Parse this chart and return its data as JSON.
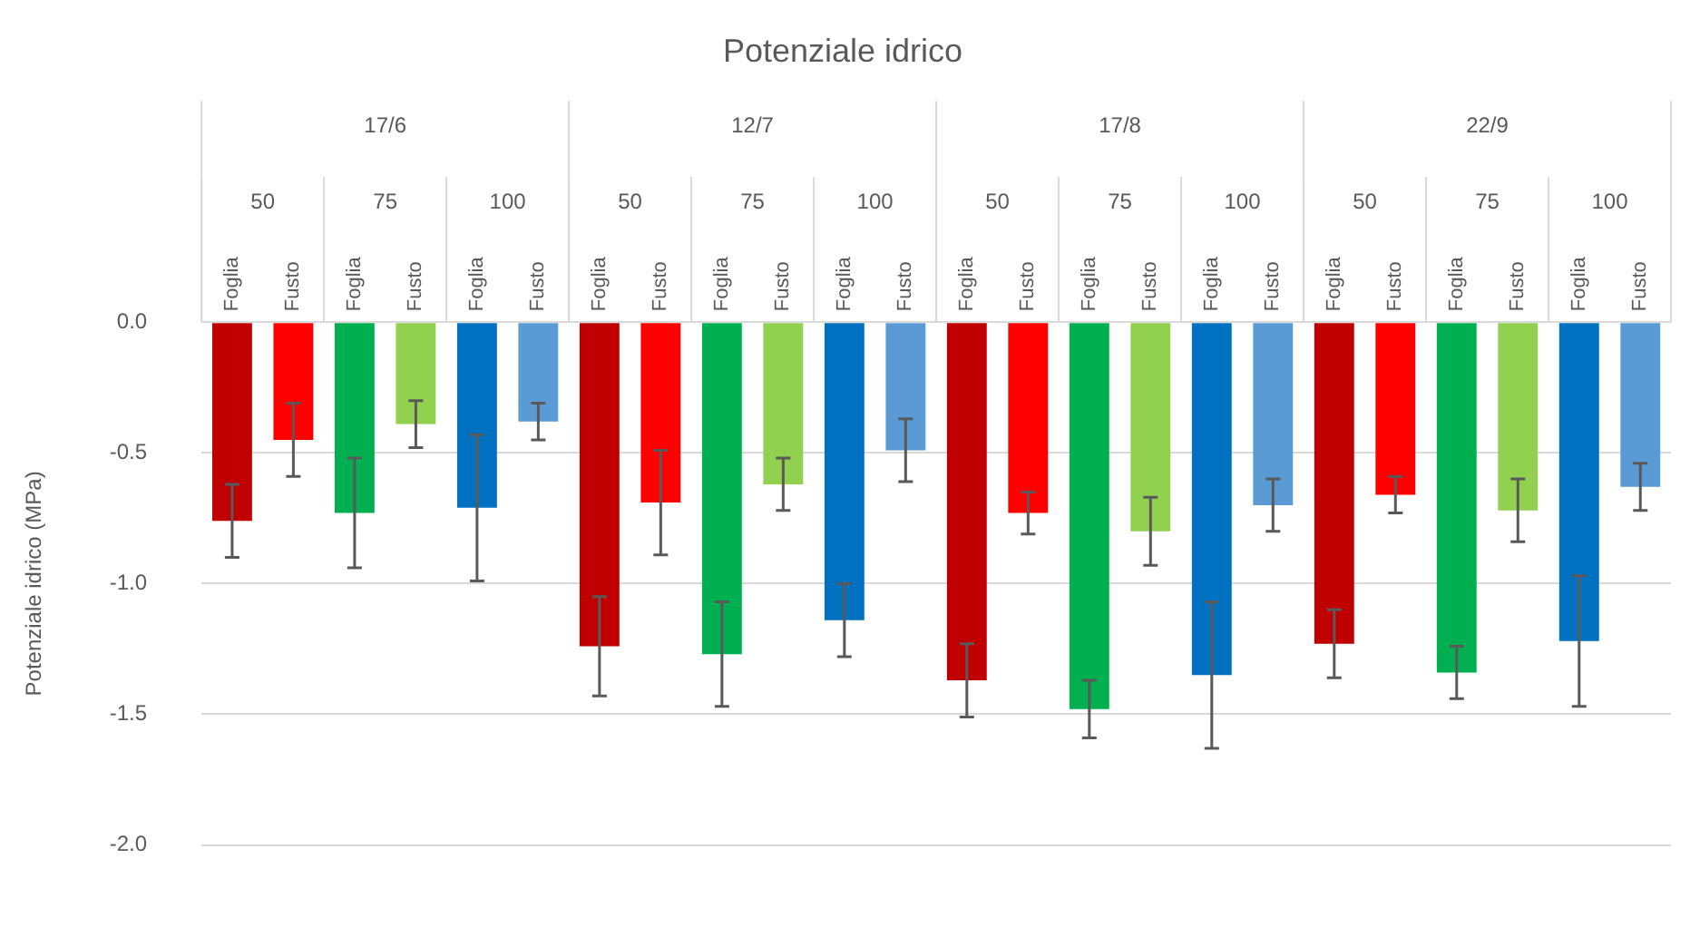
{
  "chart_data": {
    "type": "bar",
    "title": "Potenziale idrico",
    "ylabel": "Potenziale idrico (MPa)",
    "categories": [
      "Foglia",
      "Fusto",
      "Foglia",
      "Fusto",
      "Foglia",
      "Fusto",
      "Foglia",
      "Fusto",
      "Foglia",
      "Fusto",
      "Foglia",
      "Fusto",
      "Foglia",
      "Fusto",
      "Foglia",
      "Fusto",
      "Foglia",
      "Fusto",
      "Foglia",
      "Fusto",
      "Foglia",
      "Fusto",
      "Foglia",
      "Fusto"
    ],
    "values": [
      -0.76,
      -0.45,
      -0.73,
      -0.39,
      -0.71,
      -0.38,
      -1.24,
      -0.69,
      -1.27,
      -0.62,
      -1.14,
      -0.49,
      -1.37,
      -0.73,
      -1.48,
      -0.8,
      -1.35,
      -0.7,
      -1.23,
      -0.66,
      -1.34,
      -0.72,
      -1.22,
      -0.63
    ],
    "errors": [
      0.14,
      0.14,
      0.21,
      0.09,
      0.28,
      0.07,
      0.19,
      0.2,
      0.2,
      0.1,
      0.14,
      0.12,
      0.14,
      0.08,
      0.11,
      0.13,
      0.28,
      0.1,
      0.13,
      0.07,
      0.1,
      0.12,
      0.25,
      0.09
    ],
    "colors": [
      "#c00000",
      "#ff0000",
      "#00b050",
      "#92d050",
      "#0070c0",
      "#5b9bd5",
      "#c00000",
      "#ff0000",
      "#00b050",
      "#92d050",
      "#0070c0",
      "#5b9bd5",
      "#c00000",
      "#ff0000",
      "#00b050",
      "#92d050",
      "#0070c0",
      "#5b9bd5",
      "#c00000",
      "#ff0000",
      "#00b050",
      "#92d050",
      "#0070c0",
      "#5b9bd5"
    ],
    "annotations": [
      "17/6",
      "12/7",
      "17/8",
      "22/9",
      "50",
      "75",
      "100",
      "50",
      "75",
      "100",
      "50",
      "75",
      "100",
      "50",
      "75",
      "100"
    ],
    "ylim": [
      -2,
      0
    ],
    "yticks": [
      {
        "value": 0,
        "label": "0.0"
      },
      {
        "value": -0.5,
        "label": "-0.5"
      },
      {
        "value": -1,
        "label": "-1.0"
      },
      {
        "value": -1.5,
        "label": "-1.5"
      },
      {
        "value": -2,
        "label": "-2.0"
      }
    ],
    "grid": "y",
    "legend": false
  }
}
